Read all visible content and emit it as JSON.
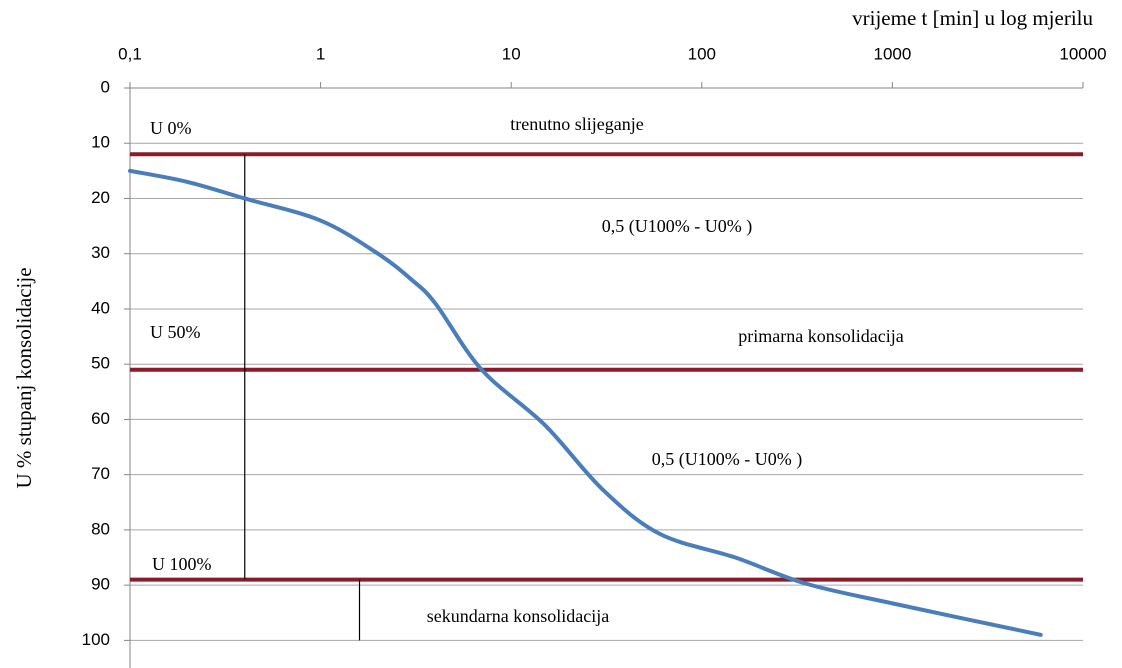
{
  "chart_data": {
    "type": "line",
    "x_label": "vrijeme t [min] u log mjerilu",
    "y_label": "U % stupanj konsolidacije",
    "xscale": "log",
    "xlim": [
      0.1,
      10000
    ],
    "xticks": [
      {
        "value": 0.1,
        "label": "0,1"
      },
      1,
      10,
      100,
      1000,
      10000
    ],
    "ylim": [
      0,
      105
    ],
    "yticks": [
      0,
      10,
      20,
      30,
      40,
      50,
      60,
      70,
      80,
      90,
      100
    ],
    "y_inverted": true,
    "grid": true,
    "x": [
      0.1,
      0.2,
      0.4,
      1,
      2,
      3,
      4,
      7,
      15,
      30,
      60,
      150,
      350,
      1000,
      6000
    ],
    "series": [
      {
        "color": "#4a7ebb",
        "values": [
          15,
          17,
          20,
          24,
          30,
          34.7,
          39,
          51,
          61,
          72.6,
          80.7,
          85,
          89.7,
          93.3,
          99
        ]
      }
    ],
    "hlines": [
      {
        "value": 12,
        "color": "#8b1a2b"
      },
      {
        "value": 51,
        "color": "#8b1a2b"
      },
      {
        "value": 89,
        "color": "#8b1a2b"
      }
    ],
    "vlines": [
      {
        "x": 0.4,
        "y": [
          12,
          89
        ]
      },
      {
        "x": 1.6,
        "y": [
          89,
          100
        ]
      }
    ],
    "annotations": [
      "U 0%",
      "trenutno slijeganje",
      "0,5 (U100% - U0% )",
      "U 50%",
      "primarna konsolidacija",
      "0,5 (U100% - U0% )",
      "U 100%",
      "sekundarna konsolidacija"
    ]
  }
}
